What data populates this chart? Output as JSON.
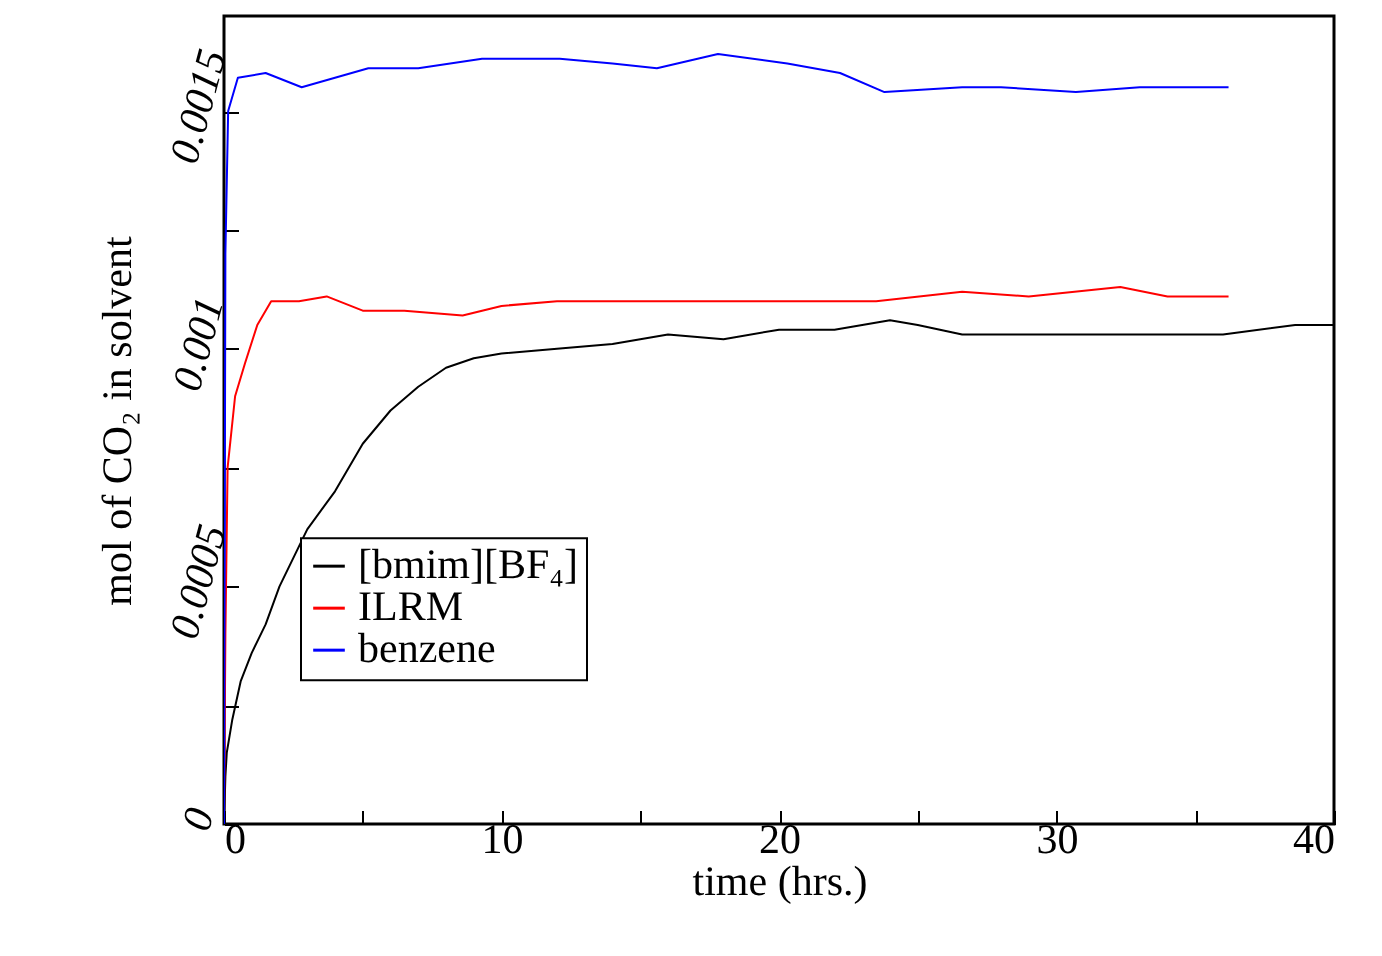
{
  "chart_data": {
    "type": "line",
    "xlabel": "time (hrs.)",
    "ylabel": "mol of CO₂ in solvent",
    "xlim": [
      0,
      40
    ],
    "ylim": [
      0,
      0.0017
    ],
    "xticks": [
      0,
      {
        "value": 5,
        "label": null
      },
      10,
      {
        "value": 15,
        "label": null
      },
      20,
      {
        "value": 25,
        "label": null
      },
      30,
      {
        "value": 35,
        "label": null
      },
      40
    ],
    "yticks": [
      0,
      {
        "value": 0.00025,
        "label": null
      },
      0.0005,
      {
        "value": 0.00075,
        "label": null
      },
      0.001,
      {
        "value": 0.00125,
        "label": null
      },
      0.0015
    ],
    "grid": false,
    "legend": "left",
    "line_style": "solid",
    "marker": "none",
    "series": [
      {
        "name": "[bmim][BF₄]",
        "color": "#000000",
        "x": [
          0,
          0.05,
          0.1,
          0.3,
          0.6,
          1,
          1.5,
          2,
          3,
          4,
          5,
          6,
          7,
          8,
          9,
          10,
          12,
          14,
          16,
          18,
          20,
          22,
          24,
          25,
          26.6,
          28,
          30,
          33,
          36,
          38.6,
          40
        ],
        "values": [
          0,
          0.0001,
          0.00015,
          0.00022,
          0.0003,
          0.00036,
          0.00042,
          0.0005,
          0.00062,
          0.0007,
          0.0008,
          0.00087,
          0.00092,
          0.00096,
          0.00098,
          0.00099,
          0.001,
          0.00101,
          0.00103,
          0.00102,
          0.00104,
          0.00104,
          0.00106,
          0.00105,
          0.00103,
          0.00103,
          0.00103,
          0.00103,
          0.00103,
          0.00105,
          0.00105
        ]
      },
      {
        "name": "ILRM",
        "color": "#ff0000",
        "x": [
          0,
          0.05,
          0.13,
          0.4,
          0.76,
          1.2,
          1.7,
          2.7,
          3.7,
          5,
          6.5,
          8.6,
          10,
          12,
          14,
          17,
          20,
          23.5,
          26.6,
          29,
          32.3,
          34,
          36.2
        ],
        "values": [
          0,
          0.0004,
          0.00075,
          0.0009,
          0.00097,
          0.00105,
          0.0011,
          0.0011,
          0.00111,
          0.00108,
          0.00108,
          0.00107,
          0.00109,
          0.0011,
          0.0011,
          0.0011,
          0.0011,
          0.0011,
          0.00112,
          0.00111,
          0.00113,
          0.00111,
          0.00111
        ]
      },
      {
        "name": "benzene",
        "color": "#0000ff",
        "x": [
          0,
          0.05,
          0.15,
          0.5,
          1.5,
          2.8,
          4,
          5.2,
          7,
          9.3,
          12.1,
          14,
          15.6,
          17.8,
          20.3,
          22.2,
          23.8,
          26.6,
          28,
          30.7,
          33,
          36.2
        ],
        "values": [
          0,
          0.0012,
          0.0015,
          0.00157,
          0.00158,
          0.00155,
          0.00157,
          0.00159,
          0.00159,
          0.00161,
          0.00161,
          0.0016,
          0.00159,
          0.00162,
          0.0016,
          0.00158,
          0.00154,
          0.00155,
          0.00155,
          0.00154,
          0.00155,
          0.00155
        ]
      }
    ]
  }
}
